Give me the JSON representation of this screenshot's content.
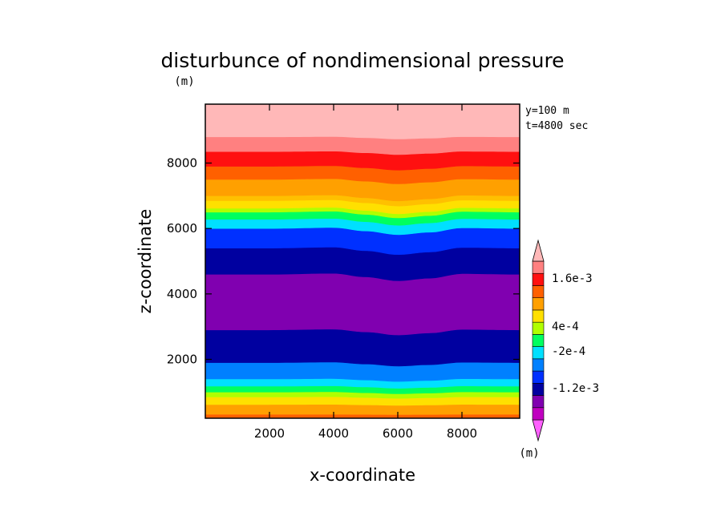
{
  "chart_data": {
    "type": "heatmap",
    "title": "disturbunce of nondimensional pressure",
    "ylabel_unit": "(m)",
    "xlabel": "x-coordinate",
    "ylabel": "z-coordinate",
    "annotations": [
      "y=100 m",
      "t=4800 sec"
    ],
    "xlim": [
      0,
      9800
    ],
    "ylim": [
      200,
      9800
    ],
    "xticks": [
      "2000",
      "4000",
      "6000",
      "8000"
    ],
    "yticks": [
      "2000",
      "4000",
      "6000",
      "8000"
    ],
    "colorbar": {
      "unit": "(m)",
      "labels": [
        "1.6e-3",
        "4e-4",
        "-2e-4",
        "-1.2e-3"
      ],
      "levels": [
        -2.0,
        -1.6,
        -1.2,
        -0.8,
        -0.6,
        -0.4,
        -0.2,
        0.0,
        0.2,
        0.4,
        0.8,
        1.2,
        1.6,
        2.0
      ],
      "level_scale": "1e-3",
      "colors": [
        "#ff60ff",
        "#c000c0",
        "#8000b0",
        "#0000a0",
        "#0030ff",
        "#0080ff",
        "#00e0ff",
        "#00ff60",
        "#b0ff00",
        "#ffe000",
        "#ffa000",
        "#ff6000",
        "#ff1010",
        "#ff8080",
        "#ffb8b8"
      ]
    },
    "bands": [
      {
        "z_top": 320,
        "color": "#ff6000"
      },
      {
        "z_top": 620,
        "color": "#ffa000"
      },
      {
        "z_top": 850,
        "color": "#ffe000"
      },
      {
        "z_top": 1000,
        "color": "#b0ff00"
      },
      {
        "z_top": 1180,
        "color": "#00ff60"
      },
      {
        "z_top": 1400,
        "color": "#00e0ff"
      },
      {
        "z_top": 1900,
        "color": "#0080ff"
      },
      {
        "z_top": 2900,
        "color": "#0000a0"
      },
      {
        "z_top": 4600,
        "color": "#8000b0"
      },
      {
        "z_top": 5400,
        "color": "#0000a0"
      },
      {
        "z_top": 6000,
        "color": "#0030ff"
      },
      {
        "z_top": 6280,
        "color": "#00e0ff"
      },
      {
        "z_top": 6500,
        "color": "#00ff60"
      },
      {
        "z_top": 6620,
        "color": "#b0ff00"
      },
      {
        "z_top": 6850,
        "color": "#ffe000"
      },
      {
        "z_top": 7000,
        "color": "#ffc000"
      },
      {
        "z_top": 7500,
        "color": "#ffa000"
      },
      {
        "z_top": 7900,
        "color": "#ff6000"
      },
      {
        "z_top": 8350,
        "color": "#ff1010"
      },
      {
        "z_top": 8800,
        "color": "#ff8080"
      },
      {
        "z_top": 9800,
        "color": "#ffb8b8"
      }
    ],
    "wave_profile": {
      "x": [
        0,
        2000,
        4000,
        5000,
        6000,
        7000,
        8000,
        9800
      ],
      "dz": [
        0,
        0,
        30,
        -80,
        -200,
        -120,
        20,
        0
      ]
    }
  }
}
